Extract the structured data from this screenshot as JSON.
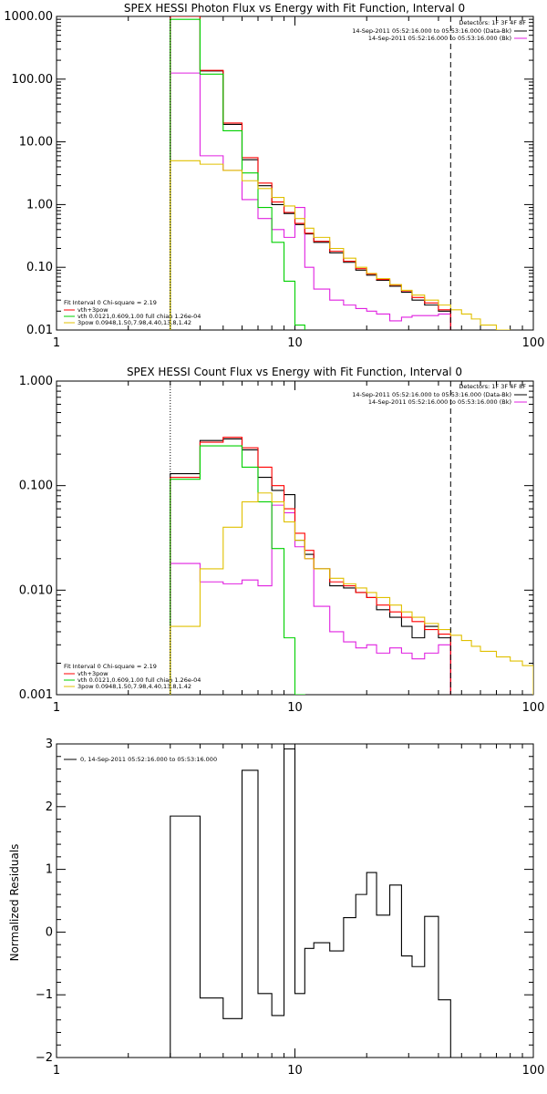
{
  "chart_data": [
    {
      "type": "line",
      "title": "SPEX HESSI Photon Flux vs Energy with Fit Function, Interval 0",
      "ylabel": "",
      "xlabel": "",
      "xscale": "log",
      "yscale": "log",
      "xlim": [
        1,
        100
      ],
      "ylim": [
        0.01,
        1000
      ],
      "xticks": [
        "1",
        "10",
        "100"
      ],
      "yticks": [
        "0.01",
        "0.10",
        "1.00",
        "10.00",
        "100.00",
        "1000.00"
      ],
      "vlines": [
        {
          "x": 3.0,
          "style": "dotted"
        },
        {
          "x": 45.0,
          "style": "dashed"
        }
      ],
      "legend_top": [
        "Detectors: 1F 3F 4F 8F",
        "14-Sep-2011 05:52:16.000 to 05:53:16.000 (Data-Bk)",
        "14-Sep-2011 05:52:16.000 to 05:53:16.000 (Bk)"
      ],
      "legend_bottom": [
        "Fit Interval 0   Chi-square = 2.19",
        "vth+3pow",
        "vth 0.0121,0.609,1.00  full chian 1.26e-04",
        "3pow 0.0948,1.50,7.98,4.40,13.8,1.42"
      ],
      "bin_edges": [
        3.0,
        4.0,
        5.0,
        6.0,
        7.0,
        8.0,
        9.0,
        10.0,
        11.0,
        12.0,
        14.0,
        16.0,
        18.0,
        20.0,
        22.0,
        25.0,
        28.0,
        31.0,
        35.0,
        40.0,
        45.0,
        50.0,
        55.0,
        60.0,
        70.0,
        80.0
      ],
      "series": [
        {
          "name": "14-Sep-2011 05:52:16.000 to 05:53:16.000 (Data-Bk)",
          "color": "#000000",
          "values": [
            1000,
            135,
            19,
            5.2,
            2.0,
            1.0,
            0.72,
            0.48,
            0.34,
            0.25,
            0.17,
            0.12,
            0.09,
            0.075,
            0.062,
            0.05,
            0.04,
            0.03,
            0.025,
            0.02
          ]
        },
        {
          "name": "14-Sep-2011 05:52:16.000 to 05:53:16.000 (Bk)",
          "color": "#e020e0",
          "values": [
            125,
            6.0,
            3.5,
            1.2,
            0.6,
            0.4,
            0.3,
            0.9,
            0.1,
            0.045,
            0.03,
            0.025,
            0.022,
            0.02,
            0.018,
            0.014,
            0.016,
            0.017,
            0.017,
            0.018
          ]
        },
        {
          "name": "vth+3pow",
          "color": "#ff0000",
          "values": [
            1000,
            138,
            20,
            5.6,
            2.2,
            1.1,
            0.75,
            0.5,
            0.35,
            0.26,
            0.18,
            0.125,
            0.095,
            0.078,
            0.064,
            0.052,
            0.042,
            0.033,
            0.027,
            0.021
          ]
        },
        {
          "name": "vth 0.0121,0.609,1.00  full chian 1.26e-04",
          "color": "#00d000",
          "values": [
            900,
            120,
            15,
            3.2,
            0.9,
            0.25,
            0.06,
            0.012
          ]
        },
        {
          "name": "3pow 0.0948,1.50,7.98,4.40,13.8,1.42",
          "color": "#e0c000",
          "values": [
            5.0,
            4.4,
            3.5,
            2.4,
            1.8,
            1.3,
            0.95,
            0.6,
            0.42,
            0.3,
            0.2,
            0.14,
            0.1,
            0.08,
            0.066,
            0.053,
            0.043,
            0.036,
            0.03,
            0.025,
            0.021,
            0.018,
            0.015,
            0.012,
            0.01
          ]
        }
      ]
    },
    {
      "type": "line",
      "title": "SPEX HESSI Count Flux vs Energy with Fit Function, Interval 0",
      "ylabel": "",
      "xlabel": "",
      "xscale": "log",
      "yscale": "log",
      "xlim": [
        1,
        100
      ],
      "ylim": [
        0.001,
        1
      ],
      "xticks": [
        "1",
        "10",
        "100"
      ],
      "yticks": [
        "0.001",
        "0.010",
        "0.100",
        "1.000"
      ],
      "vlines": [
        {
          "x": 3.0,
          "style": "dotted"
        },
        {
          "x": 45.0,
          "style": "dashed"
        }
      ],
      "legend_top": [
        "Detectors: 1F 3F 4F 8F",
        "14-Sep-2011 05:52:16.000 to 05:53:16.000 (Data-Bk)",
        "14-Sep-2011 05:52:16.000 to 05:53:16.000 (Bk)"
      ],
      "legend_bottom": [
        "Fit Interval 0   Chi-square = 2.19",
        "vth+3pow",
        "vth 0.0121,0.609,1.00  full chian 1.26e-04",
        "3pow 0.0948,1.50,7.98,4.40,13.8,1.42"
      ],
      "bin_edges": [
        3.0,
        4.0,
        5.0,
        6.0,
        7.0,
        8.0,
        9.0,
        10.0,
        11.0,
        12.0,
        14.0,
        16.0,
        18.0,
        20.0,
        22.0,
        25.0,
        28.0,
        31.0,
        35.0,
        40.0,
        45.0,
        50.0,
        55.0,
        60.0,
        70.0,
        80.0,
        90.0,
        100.0
      ],
      "series": [
        {
          "name": "14-Sep-2011 05:52:16.000 to 05:53:16.000 (Data-Bk)",
          "color": "#000000",
          "values": [
            0.13,
            0.27,
            0.28,
            0.22,
            0.12,
            0.09,
            0.082,
            0.03,
            0.022,
            0.016,
            0.011,
            0.0105,
            0.0095,
            0.0085,
            0.0065,
            0.0055,
            0.0045,
            0.0035,
            0.0045,
            0.0035
          ]
        },
        {
          "name": "14-Sep-2011 05:52:16.000 to 05:53:16.000 (Bk)",
          "color": "#e020e0",
          "values": [
            0.018,
            0.012,
            0.0115,
            0.0125,
            0.011,
            0.065,
            0.055,
            0.026,
            0.02,
            0.007,
            0.004,
            0.0032,
            0.0028,
            0.003,
            0.0025,
            0.0028,
            0.0025,
            0.0022,
            0.0025,
            0.003
          ]
        },
        {
          "name": "vth+3pow",
          "color": "#ff0000",
          "values": [
            0.12,
            0.26,
            0.29,
            0.23,
            0.15,
            0.1,
            0.06,
            0.035,
            0.024,
            0.016,
            0.012,
            0.011,
            0.0095,
            0.0085,
            0.0072,
            0.0062,
            0.0055,
            0.005,
            0.0042,
            0.0038
          ]
        },
        {
          "name": "vth 0.0121,0.609,1.00  full chian 1.26e-04",
          "color": "#00d000",
          "values": [
            0.115,
            0.24,
            0.24,
            0.15,
            0.07,
            0.025,
            0.0035,
            0.001
          ]
        },
        {
          "name": "3pow 0.0948,1.50,7.98,4.40,13.8,1.42",
          "color": "#e0c000",
          "values": [
            0.0045,
            0.016,
            0.04,
            0.07,
            0.085,
            0.07,
            0.045,
            0.03,
            0.02,
            0.016,
            0.013,
            0.0115,
            0.0105,
            0.0095,
            0.0085,
            0.0072,
            0.0062,
            0.0055,
            0.0048,
            0.0042,
            0.0037,
            0.0033,
            0.0029,
            0.0026,
            0.0023,
            0.0021,
            0.0019
          ]
        }
      ]
    },
    {
      "type": "line",
      "title": "",
      "ylabel": "Normalized Residuals",
      "xlabel": "",
      "xscale": "log",
      "yscale": "linear",
      "xlim": [
        1,
        100
      ],
      "ylim": [
        -2,
        3
      ],
      "xticks": [
        "1",
        "10",
        "100"
      ],
      "yticks": [
        "−2",
        "−1",
        "0",
        "1",
        "2",
        "3"
      ],
      "legend": [
        "0, 14-Sep-2011 05:52:16.000 to 05:53:16.000"
      ],
      "bin_edges": [
        3.0,
        4.0,
        5.0,
        6.0,
        7.0,
        8.0,
        9.0,
        10.0,
        11.0,
        12.0,
        14.0,
        16.0,
        18.0,
        20.0,
        22.0,
        25.0,
        28.0,
        31.0,
        35.0,
        40.0,
        45.0
      ],
      "series": [
        {
          "name": "0, 14-Sep-2011 05:52:16.000 to 05:53:16.000",
          "color": "#000000",
          "values": [
            1.85,
            -1.05,
            -1.38,
            2.58,
            -0.98,
            -1.33,
            2.92,
            -0.98,
            -0.26,
            -0.17,
            -0.3,
            0.23,
            0.6,
            0.95,
            0.27,
            0.75,
            -0.38,
            -0.55,
            0.25,
            -1.08
          ]
        }
      ]
    }
  ]
}
